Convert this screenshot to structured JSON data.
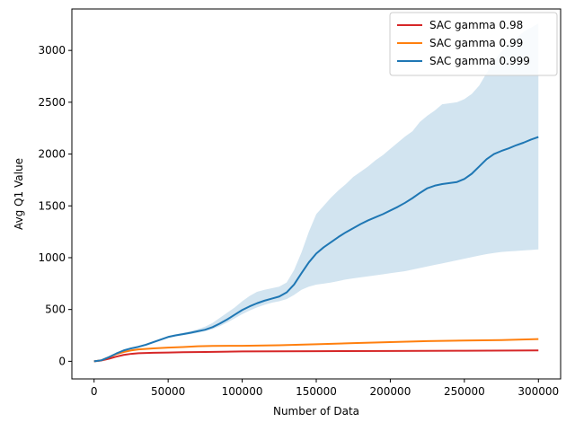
{
  "chart_data": {
    "type": "line",
    "title": "",
    "xlabel": "Number of Data",
    "ylabel": "Avg Q1 Value",
    "xlim": [
      -15000,
      315000
    ],
    "ylim": [
      -170,
      3400
    ],
    "xticks": [
      0,
      50000,
      100000,
      150000,
      200000,
      250000,
      300000
    ],
    "xtick_labels": [
      "0",
      "50000",
      "100000",
      "150000",
      "200000",
      "250000",
      "300000"
    ],
    "yticks": [
      0,
      500,
      1000,
      1500,
      2000,
      2500,
      3000
    ],
    "ytick_labels": [
      "0",
      "500",
      "1000",
      "1500",
      "2000",
      "2500",
      "3000"
    ],
    "grid": false,
    "legend_position": "top-right",
    "series": [
      {
        "name": "SAC gamma 0.98",
        "color": "#d62728",
        "x": [
          0,
          5000,
          10000,
          15000,
          20000,
          25000,
          30000,
          40000,
          50000,
          60000,
          75000,
          100000,
          150000,
          200000,
          250000,
          300000
        ],
        "y": [
          0,
          8,
          25,
          45,
          62,
          72,
          78,
          82,
          85,
          88,
          90,
          95,
          98,
          100,
          102,
          105
        ]
      },
      {
        "name": "SAC gamma 0.99",
        "color": "#ff7f0e",
        "x": [
          0,
          5000,
          10000,
          15000,
          20000,
          25000,
          30000,
          40000,
          50000,
          60000,
          70000,
          80000,
          100000,
          125000,
          150000,
          175000,
          200000,
          225000,
          250000,
          275000,
          300000
        ],
        "y": [
          0,
          10,
          40,
          70,
          90,
          105,
          115,
          125,
          132,
          138,
          145,
          148,
          150,
          155,
          165,
          175,
          185,
          195,
          200,
          205,
          215
        ]
      },
      {
        "name": "SAC gamma 0.999",
        "color": "#1f77b4",
        "x": [
          0,
          5000,
          10000,
          15000,
          20000,
          25000,
          30000,
          35000,
          40000,
          45000,
          50000,
          55000,
          60000,
          65000,
          70000,
          75000,
          80000,
          85000,
          90000,
          95000,
          100000,
          105000,
          110000,
          115000,
          120000,
          125000,
          130000,
          135000,
          140000,
          145000,
          150000,
          155000,
          160000,
          165000,
          170000,
          175000,
          180000,
          185000,
          190000,
          195000,
          200000,
          205000,
          210000,
          215000,
          220000,
          225000,
          230000,
          235000,
          240000,
          245000,
          250000,
          255000,
          260000,
          265000,
          270000,
          275000,
          280000,
          285000,
          290000,
          295000,
          300000
        ],
        "y": [
          0,
          10,
          40,
          75,
          105,
          125,
          140,
          160,
          185,
          210,
          235,
          250,
          262,
          275,
          290,
          305,
          330,
          365,
          405,
          450,
          495,
          530,
          560,
          585,
          605,
          625,
          665,
          740,
          850,
          955,
          1040,
          1100,
          1150,
          1200,
          1245,
          1285,
          1325,
          1360,
          1390,
          1420,
          1455,
          1490,
          1530,
          1575,
          1625,
          1670,
          1695,
          1710,
          1720,
          1730,
          1760,
          1810,
          1880,
          1950,
          2000,
          2030,
          2055,
          2085,
          2110,
          2140,
          2165
        ],
        "band_lower": [
          0,
          10,
          38,
          72,
          100,
          118,
          132,
          150,
          175,
          200,
          225,
          240,
          252,
          262,
          275,
          290,
          310,
          340,
          375,
          415,
          455,
          490,
          520,
          545,
          565,
          580,
          600,
          640,
          690,
          720,
          740,
          750,
          760,
          775,
          790,
          800,
          810,
          820,
          830,
          840,
          850,
          860,
          870,
          885,
          900,
          915,
          930,
          945,
          960,
          975,
          990,
          1005,
          1020,
          1035,
          1045,
          1055,
          1060,
          1065,
          1070,
          1075,
          1080
        ],
        "band_upper": [
          0,
          10,
          42,
          78,
          110,
          130,
          150,
          170,
          195,
          220,
          245,
          260,
          275,
          290,
          310,
          335,
          370,
          420,
          470,
          520,
          580,
          630,
          670,
          690,
          705,
          720,
          760,
          880,
          1050,
          1250,
          1420,
          1500,
          1580,
          1650,
          1710,
          1780,
          1830,
          1880,
          1940,
          1990,
          2050,
          2110,
          2170,
          2220,
          2310,
          2370,
          2420,
          2480,
          2490,
          2500,
          2530,
          2580,
          2660,
          2780,
          2900,
          2990,
          3060,
          3120,
          3180,
          3220,
          3260
        ]
      }
    ]
  }
}
